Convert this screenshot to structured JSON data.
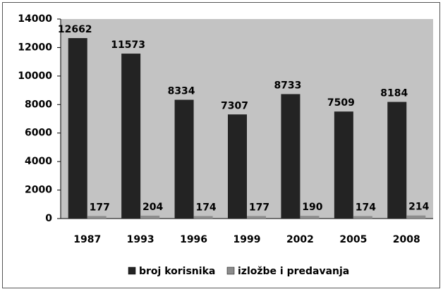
{
  "chart_data": {
    "type": "bar",
    "categories": [
      "1987",
      "1993",
      "1996",
      "1999",
      "2002",
      "2005",
      "2008"
    ],
    "series": [
      {
        "name": "broj korisnika",
        "color": "#232323",
        "values": [
          12662,
          11573,
          8334,
          7307,
          8733,
          7509,
          8184
        ]
      },
      {
        "name": "izložbe i predavanja",
        "color": "#8c8c8c",
        "values": [
          177,
          204,
          174,
          177,
          190,
          174,
          214
        ]
      }
    ],
    "ylim": [
      0,
      14000
    ],
    "yticks": [
      0,
      2000,
      4000,
      6000,
      8000,
      10000,
      12000,
      14000
    ],
    "legend": "bottom",
    "plot_background": "#c3c3c3"
  }
}
